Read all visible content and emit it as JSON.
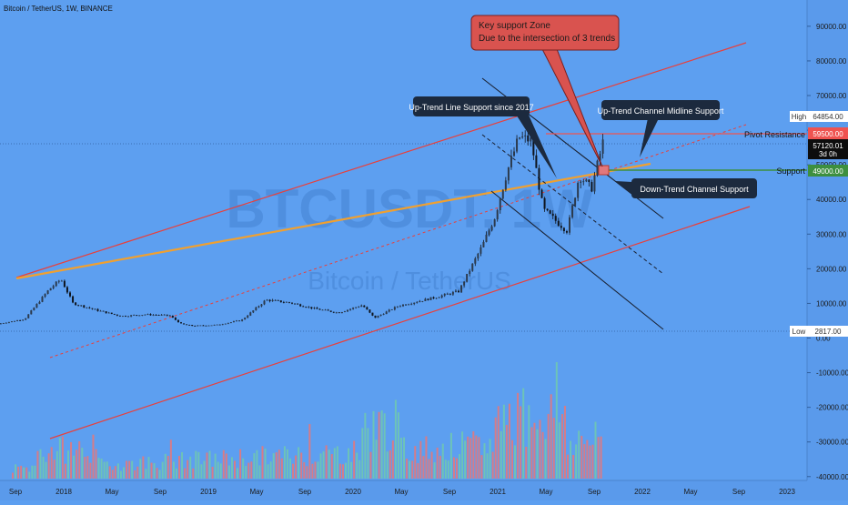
{
  "header": {
    "symbol_title": "Bitcoin / TetherUS, 1W, BINANCE"
  },
  "watermark": {
    "line1": "BTCUSDT, 1W",
    "line2": "Bitcoin / TetherUS"
  },
  "colors": {
    "background": "#5d9ff0",
    "channel": "#e8403c",
    "trend_orange": "#f0a030",
    "dark_line": "#1a2233",
    "support_green": "#3d8f3f",
    "resistance_red": "#ef5350",
    "volume_green": "#6fc7b1",
    "volume_red": "#e2787d"
  },
  "chart_data": {
    "type": "line",
    "subtype": "candlestick-with-volume",
    "title": "Bitcoin / TetherUS, 1W, BINANCE",
    "x_tick_labels": [
      "Sep",
      "2018",
      "May",
      "Sep",
      "2019",
      "May",
      "Sep",
      "2020",
      "May",
      "Sep",
      "2021",
      "May",
      "Sep",
      "2022",
      "May",
      "Sep",
      "2023"
    ],
    "x_range": [
      "2017-08",
      "2023-02"
    ],
    "y_tick_labels": [
      "90000.00",
      "80000.00",
      "70000.00",
      "60000.00",
      "50000.00",
      "40000.00",
      "30000.00",
      "20000.00",
      "10000.00",
      "0.00",
      "-10000.00",
      "-20000.00",
      "-30000.00",
      "-40000.00"
    ],
    "y_range": [
      -40000,
      95000
    ],
    "price_series": [
      [
        "2017-08",
        4200
      ],
      [
        "2017-10",
        5500
      ],
      [
        "2017-12",
        14000
      ],
      [
        "2018-01",
        17000
      ],
      [
        "2018-02",
        10000
      ],
      [
        "2018-04",
        8000
      ],
      [
        "2018-06",
        6300
      ],
      [
        "2018-08",
        6800
      ],
      [
        "2018-10",
        6500
      ],
      [
        "2018-11",
        4000
      ],
      [
        "2018-12",
        3500
      ],
      [
        "2019-02",
        3800
      ],
      [
        "2019-04",
        5200
      ],
      [
        "2019-06",
        11000
      ],
      [
        "2019-08",
        10200
      ],
      [
        "2019-10",
        8500
      ],
      [
        "2019-12",
        7300
      ],
      [
        "2020-02",
        9500
      ],
      [
        "2020-03",
        5800
      ],
      [
        "2020-05",
        9300
      ],
      [
        "2020-08",
        11700
      ],
      [
        "2020-10",
        13500
      ],
      [
        "2020-12",
        27000
      ],
      [
        "2021-01",
        35000
      ],
      [
        "2021-02",
        48000
      ],
      [
        "2021-03",
        58000
      ],
      [
        "2021-04",
        57000
      ],
      [
        "2021-05",
        37000
      ],
      [
        "2021-06",
        34000
      ],
      [
        "2021-07",
        31000
      ],
      [
        "2021-08",
        47000
      ],
      [
        "2021-09",
        43000
      ],
      [
        "2021-10",
        57120
      ]
    ],
    "volume_note": "volume histogram in lower panel",
    "price_labels": {
      "high": {
        "label": "High",
        "value": "64854.00"
      },
      "pivot": {
        "label": "Pivot Resistance",
        "value": "59500.00"
      },
      "current": {
        "value": "57120.01",
        "sub": "3d 0h"
      },
      "support": {
        "label": "Support",
        "value": "49000.00"
      },
      "low": {
        "label": "Low",
        "value": "2817.00"
      }
    },
    "annotations": [
      {
        "name": "key-support-zone",
        "line1": "Key support Zone",
        "line2": "Due to the intersection of 3 trends"
      },
      {
        "name": "uptrend-line-support",
        "text": "Up-Trend Line Support since 2017"
      },
      {
        "name": "uptrend-channel-midline",
        "text": "Up-Trend Channel Midline Support"
      },
      {
        "name": "downtrend-channel-support",
        "text": "Down-Trend Channel Support"
      }
    ],
    "grid": false,
    "legend": "none"
  }
}
